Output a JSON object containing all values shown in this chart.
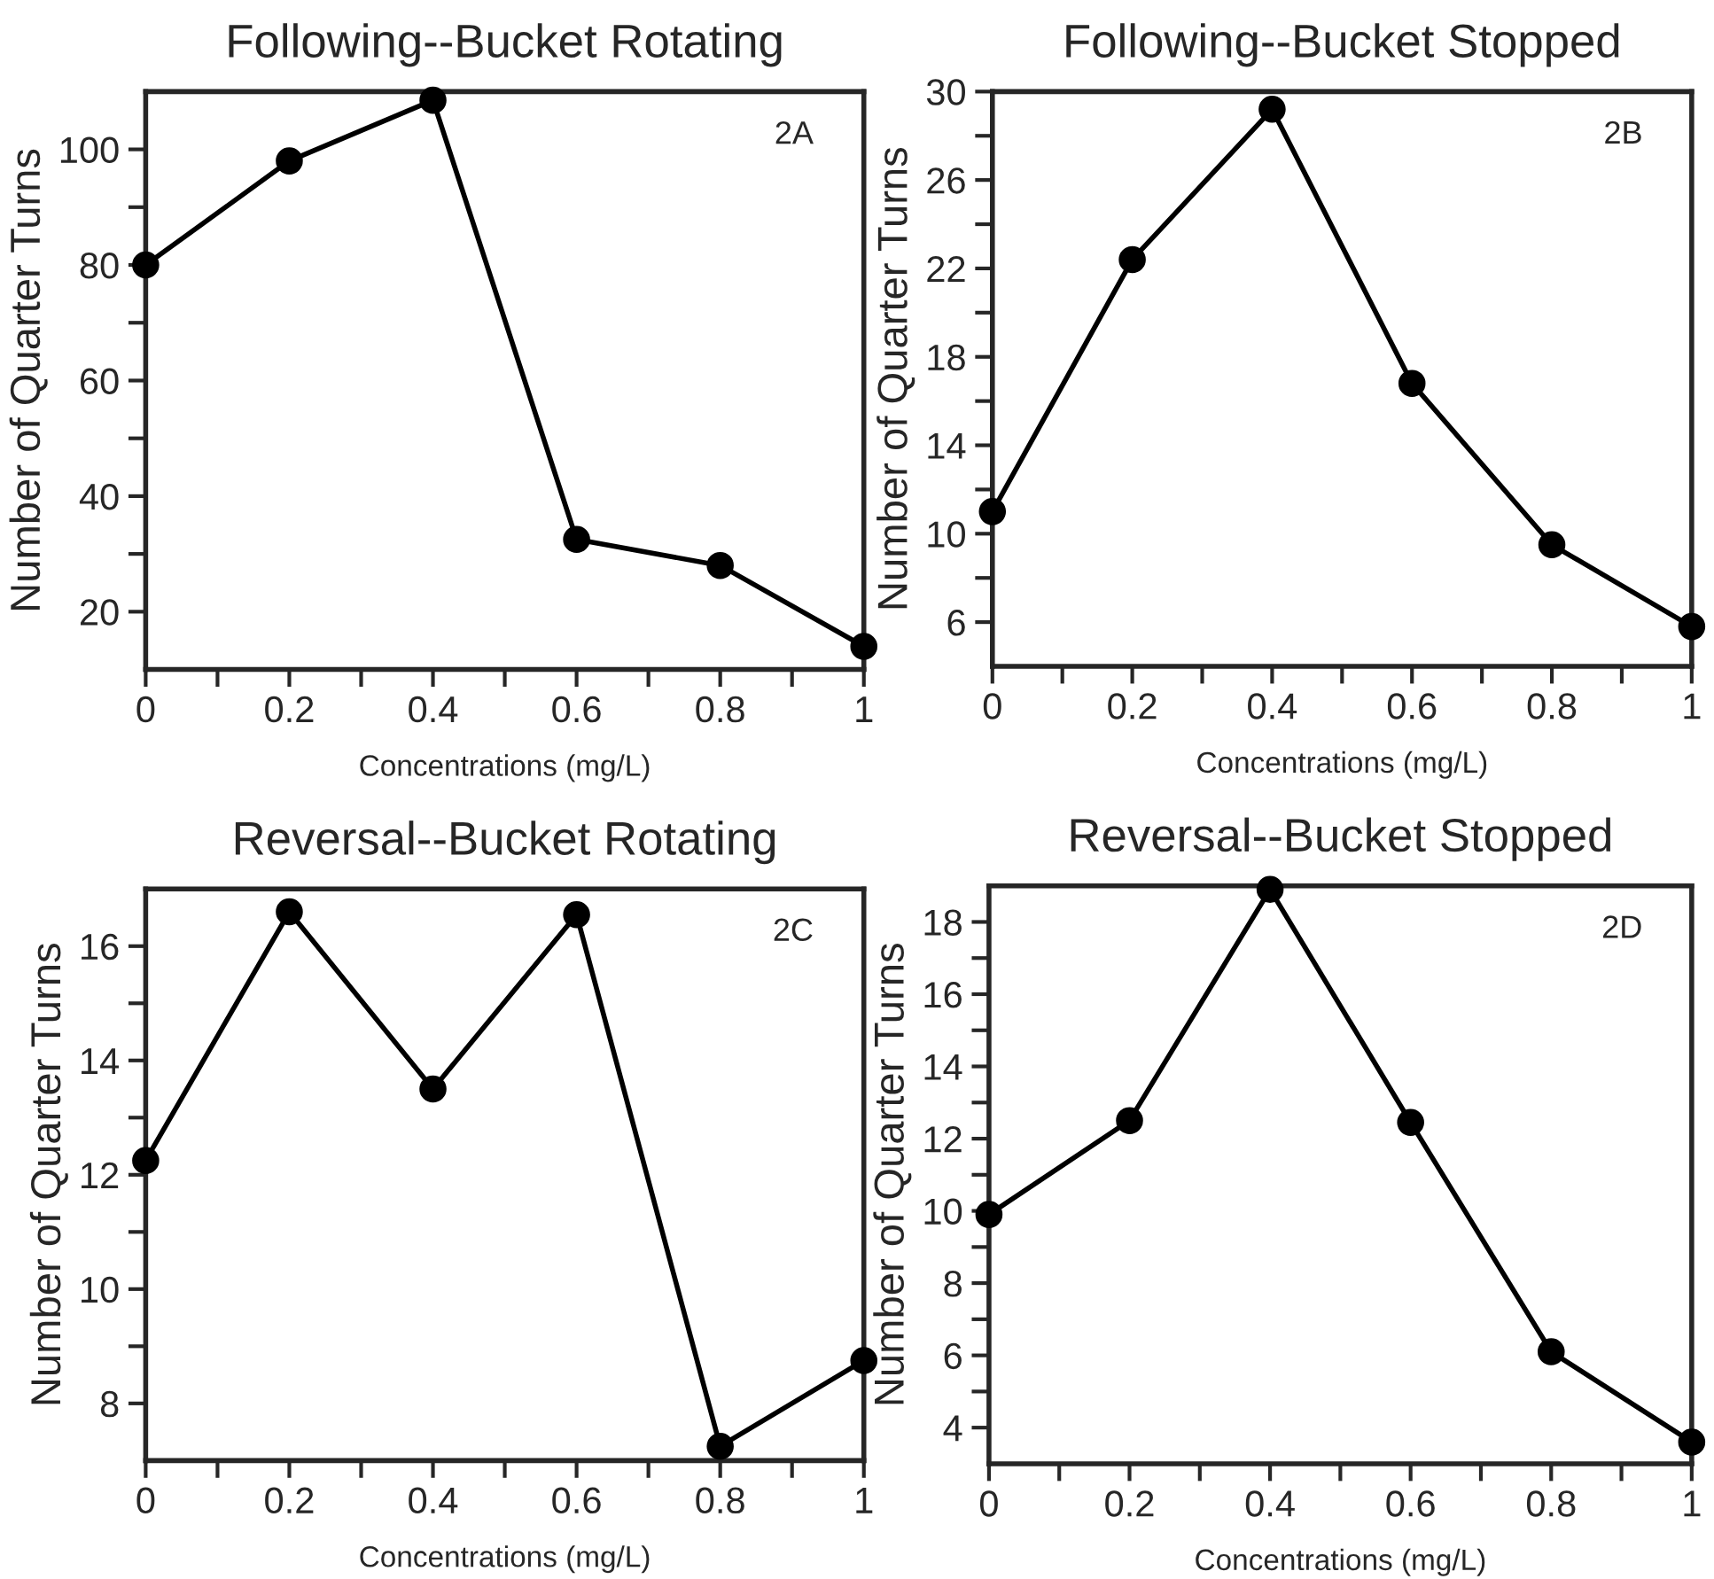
{
  "chart_data": [
    {
      "type": "line",
      "title": "Following--Bucket Rotating",
      "xlabel": "Concentrations (mg/L)",
      "ylabel": "Number of Quarter Turns",
      "annotations": [
        "2A"
      ],
      "x": [
        0,
        0.2,
        0.4,
        0.6,
        0.8,
        1
      ],
      "series": [
        {
          "color": "#000000",
          "values": [
            80,
            98,
            108.5,
            32.5,
            28,
            14
          ]
        }
      ],
      "xlim": [
        0,
        1
      ],
      "xticks": [
        0,
        {
          "value": 0.1,
          "label": null
        },
        0.2,
        {
          "value": 0.3,
          "label": null
        },
        0.4,
        {
          "value": 0.5,
          "label": null
        },
        0.6,
        {
          "value": 0.7,
          "label": null
        },
        0.8,
        {
          "value": 0.9,
          "label": null
        },
        1
      ],
      "ylim": [
        10,
        110
      ],
      "yticks": [
        20,
        {
          "value": 30,
          "label": null
        },
        40,
        {
          "value": 50,
          "label": null
        },
        60,
        {
          "value": 70,
          "label": null
        },
        80,
        {
          "value": 90,
          "label": null
        },
        100
      ],
      "marker": "circle",
      "line_style": "solid",
      "grid": false
    },
    {
      "type": "line",
      "title": "Following--Bucket Stopped",
      "xlabel": "Concentrations (mg/L)",
      "ylabel": "Number of Quarter Turns",
      "annotations": [
        "2B"
      ],
      "x": [
        0,
        0.2,
        0.4,
        0.6,
        0.8,
        1
      ],
      "series": [
        {
          "color": "#000000",
          "values": [
            11,
            22.4,
            29.2,
            16.8,
            9.5,
            5.8
          ]
        }
      ],
      "xlim": [
        0,
        1
      ],
      "xticks": [
        0,
        {
          "value": 0.1,
          "label": null
        },
        0.2,
        {
          "value": 0.3,
          "label": null
        },
        0.4,
        {
          "value": 0.5,
          "label": null
        },
        0.6,
        {
          "value": 0.7,
          "label": null
        },
        0.8,
        {
          "value": 0.9,
          "label": null
        },
        1
      ],
      "ylim": [
        4,
        30
      ],
      "yticks": [
        6,
        {
          "value": 8,
          "label": null
        },
        10,
        {
          "value": 12,
          "label": null
        },
        14,
        {
          "value": 16,
          "label": null
        },
        18,
        {
          "value": 20,
          "label": null
        },
        22,
        {
          "value": 24,
          "label": null
        },
        26,
        {
          "value": 28,
          "label": null
        },
        30
      ],
      "marker": "circle",
      "line_style": "solid",
      "grid": false
    },
    {
      "type": "line",
      "title": "Reversal--Bucket Rotating",
      "xlabel": "Concentrations (mg/L)",
      "ylabel": "Number of Quarter Turns",
      "annotations": [
        "2C"
      ],
      "x": [
        0,
        0.2,
        0.4,
        0.6,
        0.8,
        1
      ],
      "series": [
        {
          "color": "#000000",
          "values": [
            12.25,
            16.6,
            13.5,
            16.55,
            7.25,
            8.75
          ]
        }
      ],
      "xlim": [
        0,
        1
      ],
      "xticks": [
        0,
        {
          "value": 0.1,
          "label": null
        },
        0.2,
        {
          "value": 0.3,
          "label": null
        },
        0.4,
        {
          "value": 0.5,
          "label": null
        },
        0.6,
        {
          "value": 0.7,
          "label": null
        },
        0.8,
        {
          "value": 0.9,
          "label": null
        },
        1
      ],
      "ylim": [
        7,
        17
      ],
      "yticks": [
        8,
        {
          "value": 9,
          "label": null
        },
        10,
        {
          "value": 11,
          "label": null
        },
        12,
        {
          "value": 13,
          "label": null
        },
        14,
        {
          "value": 15,
          "label": null
        },
        16
      ],
      "marker": "circle",
      "line_style": "solid",
      "grid": false
    },
    {
      "type": "line",
      "title": "Reversal--Bucket Stopped",
      "xlabel": "Concentrations (mg/L)",
      "ylabel": "Number of Quarter Turns",
      "annotations": [
        "2D"
      ],
      "x": [
        0,
        0.2,
        0.4,
        0.6,
        0.8,
        1
      ],
      "series": [
        {
          "color": "#000000",
          "values": [
            9.9,
            12.5,
            18.9,
            12.45,
            6.1,
            3.6
          ]
        }
      ],
      "xlim": [
        0,
        1
      ],
      "xticks": [
        0,
        {
          "value": 0.1,
          "label": null
        },
        0.2,
        {
          "value": 0.3,
          "label": null
        },
        0.4,
        {
          "value": 0.5,
          "label": null
        },
        0.6,
        {
          "value": 0.7,
          "label": null
        },
        0.8,
        {
          "value": 0.9,
          "label": null
        },
        1
      ],
      "ylim": [
        3,
        19
      ],
      "yticks": [
        4,
        {
          "value": 5,
          "label": null
        },
        6,
        {
          "value": 7,
          "label": null
        },
        8,
        {
          "value": 9,
          "label": null
        },
        10,
        {
          "value": 11,
          "label": null
        },
        12,
        {
          "value": 13,
          "label": null
        },
        14,
        {
          "value": 15,
          "label": null
        },
        16,
        {
          "value": 17,
          "label": null
        },
        18
      ],
      "marker": "circle",
      "line_style": "solid",
      "grid": false
    }
  ]
}
